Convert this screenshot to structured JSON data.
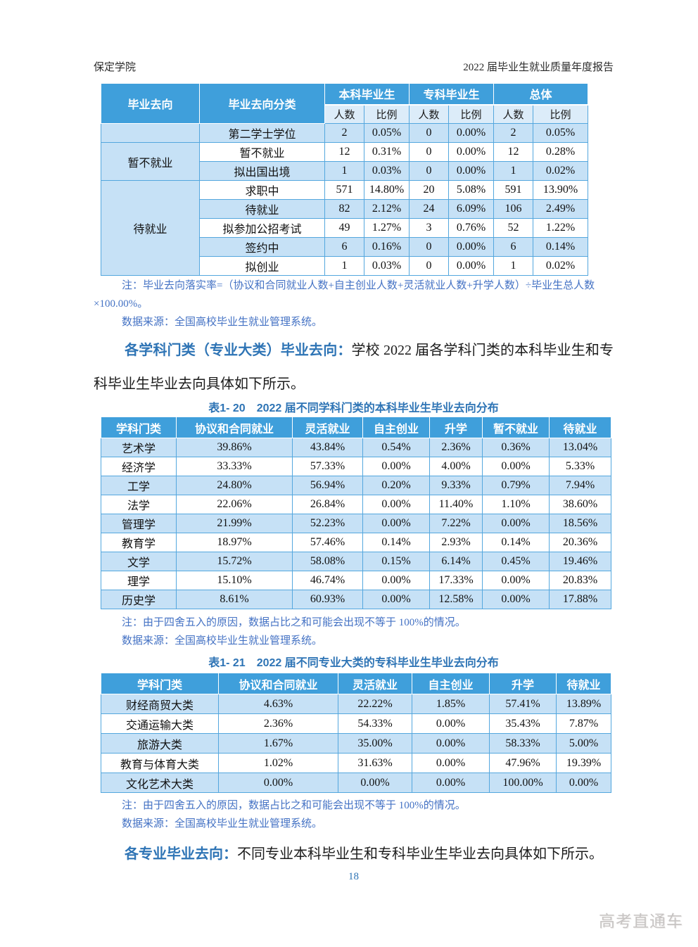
{
  "page_header": {
    "left": "保定学院",
    "right": "2022 届毕业生就业质量年度报告"
  },
  "colors": {
    "table_header_blue": "#3f9fdb",
    "subheader_light_blue": "#dcecf9",
    "row_stripe_blue": "#c6e1f6",
    "table_border_blue": "#54a7de",
    "note_text_blue": "#4472c4",
    "caption_text_blue": "#2e74b5",
    "watermark_gray": "#c7c4c3"
  },
  "table1": {
    "col_group_headers": [
      "毕业去向",
      "毕业去向分类",
      "本科毕业生",
      "专科毕业生",
      "总体"
    ],
    "sub_headers": [
      "人数",
      "比例",
      "人数",
      "比例",
      "人数",
      "比例"
    ],
    "rows": [
      {
        "group": "",
        "group_span": 1,
        "category": "第二学士学位",
        "values": [
          "2",
          "0.05%",
          "0",
          "0.00%",
          "2",
          "0.05%"
        ]
      },
      {
        "group": "暂不就业",
        "group_span": 2,
        "category": "暂不就业",
        "values": [
          "12",
          "0.31%",
          "0",
          "0.00%",
          "12",
          "0.28%"
        ]
      },
      {
        "category": "拟出国出境",
        "values": [
          "1",
          "0.03%",
          "0",
          "0.00%",
          "1",
          "0.02%"
        ]
      },
      {
        "group": "待就业",
        "group_span": 5,
        "category": "求职中",
        "values": [
          "571",
          "14.80%",
          "20",
          "5.08%",
          "591",
          "13.90%"
        ]
      },
      {
        "category": "待就业",
        "values": [
          "82",
          "2.12%",
          "24",
          "6.09%",
          "106",
          "2.49%"
        ]
      },
      {
        "category": "拟参加公招考试",
        "values": [
          "49",
          "1.27%",
          "3",
          "0.76%",
          "52",
          "1.22%"
        ]
      },
      {
        "category": "签约中",
        "values": [
          "6",
          "0.16%",
          "0",
          "0.00%",
          "6",
          "0.14%"
        ]
      },
      {
        "category": "拟创业",
        "values": [
          "1",
          "0.03%",
          "0",
          "0.00%",
          "1",
          "0.02%"
        ]
      }
    ],
    "note_line1": "注：毕业去向落实率=（协议和合同就业人数+自主创业人数+灵活就业人数+升学人数）÷毕业生总人数",
    "note_line2": "×100.00%。",
    "source": "数据来源：全国高校毕业生就业管理系统。"
  },
  "paragraph1": {
    "lead": "各学科门类（专业大类）毕业去向：",
    "text": "学校 2022 届各学科门类的本科毕业生和专科毕业生毕业去向具体如下所示。"
  },
  "table20": {
    "caption_label": "表1- 20",
    "caption_text": "2022 届不同学科门类的本科毕业生毕业去向分布",
    "headers": [
      "学科门类",
      "协议和合同就业",
      "灵活就业",
      "自主创业",
      "升学",
      "暂不就业",
      "待就业"
    ],
    "rows": [
      [
        "艺术学",
        "39.86%",
        "43.84%",
        "0.54%",
        "2.36%",
        "0.36%",
        "13.04%"
      ],
      [
        "经济学",
        "33.33%",
        "57.33%",
        "0.00%",
        "4.00%",
        "0.00%",
        "5.33%"
      ],
      [
        "工学",
        "24.80%",
        "56.94%",
        "0.20%",
        "9.33%",
        "0.79%",
        "7.94%"
      ],
      [
        "法学",
        "22.06%",
        "26.84%",
        "0.00%",
        "11.40%",
        "1.10%",
        "38.60%"
      ],
      [
        "管理学",
        "21.99%",
        "52.23%",
        "0.00%",
        "7.22%",
        "0.00%",
        "18.56%"
      ],
      [
        "教育学",
        "18.97%",
        "57.46%",
        "0.14%",
        "2.93%",
        "0.14%",
        "20.36%"
      ],
      [
        "文学",
        "15.72%",
        "58.08%",
        "0.15%",
        "6.14%",
        "0.45%",
        "19.46%"
      ],
      [
        "理学",
        "15.10%",
        "46.74%",
        "0.00%",
        "17.33%",
        "0.00%",
        "20.83%"
      ],
      [
        "历史学",
        "8.61%",
        "60.93%",
        "0.00%",
        "12.58%",
        "0.00%",
        "17.88%"
      ]
    ],
    "note": "注：由于四舍五入的原因，数据占比之和可能会出现不等于 100%的情况。",
    "source": "数据来源：全国高校毕业生就业管理系统。"
  },
  "table21": {
    "caption_label": "表1- 21",
    "caption_text": "2022 届不同专业大类的专科毕业生毕业去向分布",
    "headers": [
      "学科门类",
      "协议和合同就业",
      "灵活就业",
      "自主创业",
      "升学",
      "待就业"
    ],
    "rows": [
      [
        "财经商贸大类",
        "4.63%",
        "22.22%",
        "1.85%",
        "57.41%",
        "13.89%"
      ],
      [
        "交通运输大类",
        "2.36%",
        "54.33%",
        "0.00%",
        "35.43%",
        "7.87%"
      ],
      [
        "旅游大类",
        "1.67%",
        "35.00%",
        "0.00%",
        "58.33%",
        "5.00%"
      ],
      [
        "教育与体育大类",
        "1.02%",
        "31.63%",
        "0.00%",
        "47.96%",
        "19.39%"
      ],
      [
        "文化艺术大类",
        "0.00%",
        "0.00%",
        "0.00%",
        "100.00%",
        "0.00%"
      ]
    ],
    "note": "注：由于四舍五入的原因，数据占比之和可能会出现不等于 100%的情况。",
    "source": "数据来源：全国高校毕业生就业管理系统。"
  },
  "paragraph2": {
    "lead": "各专业毕业去向：",
    "text": "不同专业本科毕业生和专科毕业生毕业去向具体如下所示。"
  },
  "footer": {
    "page_number": "18",
    "watermark": "高考直通车"
  }
}
